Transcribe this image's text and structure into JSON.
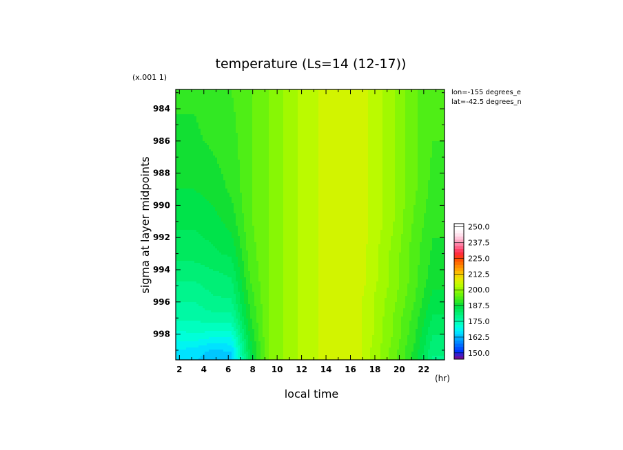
{
  "chart_data": {
    "type": "heatmap",
    "title": "temperature (Ls=14 (12-17))",
    "xlabel": "local time",
    "x_unit": "(hr)",
    "ylabel": "sigma at layer midpoints",
    "y_scale_note": "(x.001 1)",
    "annotations": [
      "lon=-155 degrees_e",
      "lat=-42.5 degrees_n"
    ],
    "x_ticks": [
      2,
      4,
      6,
      8,
      10,
      12,
      14,
      16,
      18,
      20,
      22
    ],
    "y_ticks": [
      984,
      986,
      988,
      990,
      992,
      994,
      996,
      998
    ],
    "xlim": [
      1.7,
      23.7
    ],
    "ylim": [
      982.8,
      999.6
    ],
    "y_inverted": true,
    "x": [
      1.75,
      3.25,
      4.75,
      6.25,
      7.75,
      9.25,
      10.75,
      12.25,
      13.75,
      15.25,
      16.75,
      18.25,
      19.75,
      21.25,
      22.75,
      23.7
    ],
    "y": [
      982.8,
      986,
      989,
      991,
      993,
      994.5,
      996,
      997,
      998,
      999,
      999.6
    ],
    "z": [
      [
        190.5,
        190.5,
        191.5,
        192.5,
        194.5,
        197.5,
        200.5,
        203.5,
        205.5,
        206.5,
        206.5,
        203.5,
        199.5,
        195.5,
        192.5,
        192.5
      ],
      [
        189.5,
        189.5,
        190.5,
        191.5,
        194.5,
        197.5,
        200.5,
        203.5,
        205.5,
        206.5,
        206.5,
        203.5,
        199.5,
        195.5,
        192.5,
        192.5
      ],
      [
        187.5,
        187.5,
        188.5,
        190.5,
        194.5,
        197.5,
        200.5,
        203.5,
        205.5,
        206.5,
        206.5,
        203.5,
        199.5,
        195.5,
        191.5,
        191.5
      ],
      [
        185.5,
        185.5,
        186.5,
        188.5,
        194.5,
        197.5,
        200.5,
        203.5,
        205.5,
        206.5,
        206.5,
        203.5,
        199.5,
        194.5,
        190.5,
        190.5
      ],
      [
        183.5,
        183.5,
        184.5,
        185.5,
        193.5,
        197.5,
        200.5,
        203.5,
        205.5,
        206.5,
        206.5,
        202.5,
        198.5,
        193.5,
        189.5,
        189.5
      ],
      [
        180.5,
        180.5,
        181.5,
        182.5,
        192.5,
        197.5,
        200.5,
        203.5,
        205.5,
        206.5,
        206.5,
        202.5,
        198.5,
        193.5,
        188.5,
        188.5
      ],
      [
        177.5,
        177.5,
        179.5,
        179.5,
        190.5,
        197.5,
        200.5,
        203.5,
        205.5,
        206.5,
        205.5,
        201.5,
        197.5,
        192.5,
        186.5,
        186.5
      ],
      [
        175.5,
        175.5,
        176.5,
        176.5,
        189.5,
        197.5,
        200.5,
        203.5,
        205.5,
        206.5,
        205.5,
        201.5,
        196.5,
        191.5,
        184.5,
        184.5
      ],
      [
        171.5,
        172.5,
        171.5,
        171.5,
        187.5,
        197.5,
        200.5,
        203.5,
        205.5,
        206.5,
        205.5,
        201.5,
        196.5,
        190.5,
        182.5,
        182.5
      ],
      [
        167.5,
        166.5,
        164.5,
        165.5,
        185.5,
        197.5,
        200.5,
        203.5,
        205.5,
        206.5,
        205.5,
        200.5,
        195.5,
        189.5,
        180.5,
        180.5
      ],
      [
        166.5,
        165.5,
        162.5,
        163.5,
        184.5,
        197.5,
        200.5,
        203.5,
        205.5,
        206.5,
        205.5,
        200.5,
        195.5,
        188.5,
        179.5,
        179.5
      ]
    ],
    "colorbar": {
      "labels": [
        "250.0",
        "237.5",
        "225.0",
        "212.5",
        "200.0",
        "187.5",
        "175.0",
        "162.5",
        "150.0"
      ],
      "min": 145,
      "max": 252.5,
      "step": 2.5,
      "colors": [
        "#6e0d9a",
        "#3a1ecd",
        "#0034ff",
        "#0050ff",
        "#006dff",
        "#008bff",
        "#00a9ff",
        "#00c6ff",
        "#00e2ff",
        "#00f5f1",
        "#00ffd9",
        "#00ffbf",
        "#00f9a4",
        "#00f58d",
        "#00ef76",
        "#00e95e",
        "#00e34a",
        "#12df33",
        "#32e823",
        "#4fee16",
        "#6cf30c",
        "#87f705",
        "#a2f900",
        "#bbfa00",
        "#d2f400",
        "#e6e800",
        "#f3d500",
        "#fbbd00",
        "#ffa400",
        "#ff8b00",
        "#ff7000",
        "#ff5500",
        "#ff3a1a",
        "#ff2d3d",
        "#ff3f63",
        "#ff5f86",
        "#ff84a7",
        "#ffa7c3",
        "#ffc6db",
        "#ffe0ec",
        "#fff2f7",
        "#ffffff",
        "#ffffff"
      ]
    }
  }
}
